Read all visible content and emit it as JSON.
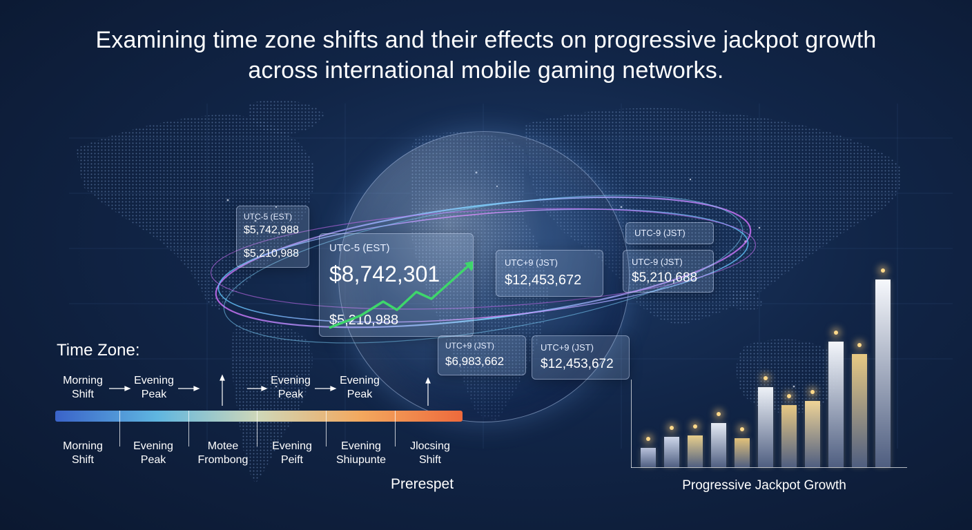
{
  "title": {
    "line1": "Examining time zone shifts and their effects on progressive jackpot growth",
    "line2": "across international mobile gaming networks."
  },
  "cards": {
    "c1": {
      "tz": "UTC-5 (EST)",
      "v1": "$5,742,988",
      "v2": "$5,210,988"
    },
    "c2": {
      "tz": "UTC-5 (EST)",
      "v1": "$8,742,301",
      "v2": "$5,210,988"
    },
    "c3": {
      "tz": "UTC+9 (JST)",
      "v1": "$12,453,672"
    },
    "c4": {
      "tz": "UTC-9 (JST)"
    },
    "c5": {
      "tz": "UTC-9 (JST)",
      "v1": "$5,210,688"
    },
    "c6": {
      "tz": "UTC+9 (JST)",
      "v1": "$6,983,662"
    },
    "c7": {
      "tz": "UTC+9 (JST)",
      "v1": "$12,453,672"
    }
  },
  "timeline": {
    "heading": "Time Zone:",
    "top_labels": [
      {
        "l1": "Morning",
        "l2": "Shift"
      },
      {
        "l1": "Evening",
        "l2": "Peak"
      },
      {
        "l1": "Evening",
        "l2": "Peak"
      },
      {
        "l1": "Evening",
        "l2": "Peak"
      }
    ],
    "bottom_labels": [
      {
        "l1": "Morning",
        "l2": "Shift"
      },
      {
        "l1": "Evening",
        "l2": "Peak"
      },
      {
        "l1": "Motee",
        "l2": "Frombong"
      },
      {
        "l1": "Evening",
        "l2": "Peift"
      },
      {
        "l1": "Evening",
        "l2": "Shiupunte"
      },
      {
        "l1": "Jlocsing",
        "l2": "Shift"
      }
    ],
    "axis_title": "Prerespet",
    "gradient_colors": [
      "#3a63c9",
      "#5fb6e0",
      "#cfd7b8",
      "#f3a85e",
      "#ee6a3c"
    ]
  },
  "chart_data": {
    "type": "bar",
    "title": "",
    "xlabel": "Progressive Jackpot Growth",
    "values": [
      0.14,
      0.22,
      0.23,
      0.32,
      0.21,
      0.58,
      0.45,
      0.48,
      0.91,
      0.82,
      1.36
    ],
    "ylim": [
      0,
      1.5
    ],
    "colors": [
      "#b8c2dc",
      "#cdd6ea",
      "#e8cf8c",
      "#e6ecf6",
      "#e2c27a",
      "#eef2f8",
      "#e7c883",
      "#efd497",
      "#f3f6fb",
      "#e7c983",
      "#f6f8fc"
    ]
  },
  "colors": {
    "accent_green": "#3ed66b",
    "orbit_blue": "#7fd4ff",
    "orbit_purple": "#c86cf2"
  }
}
